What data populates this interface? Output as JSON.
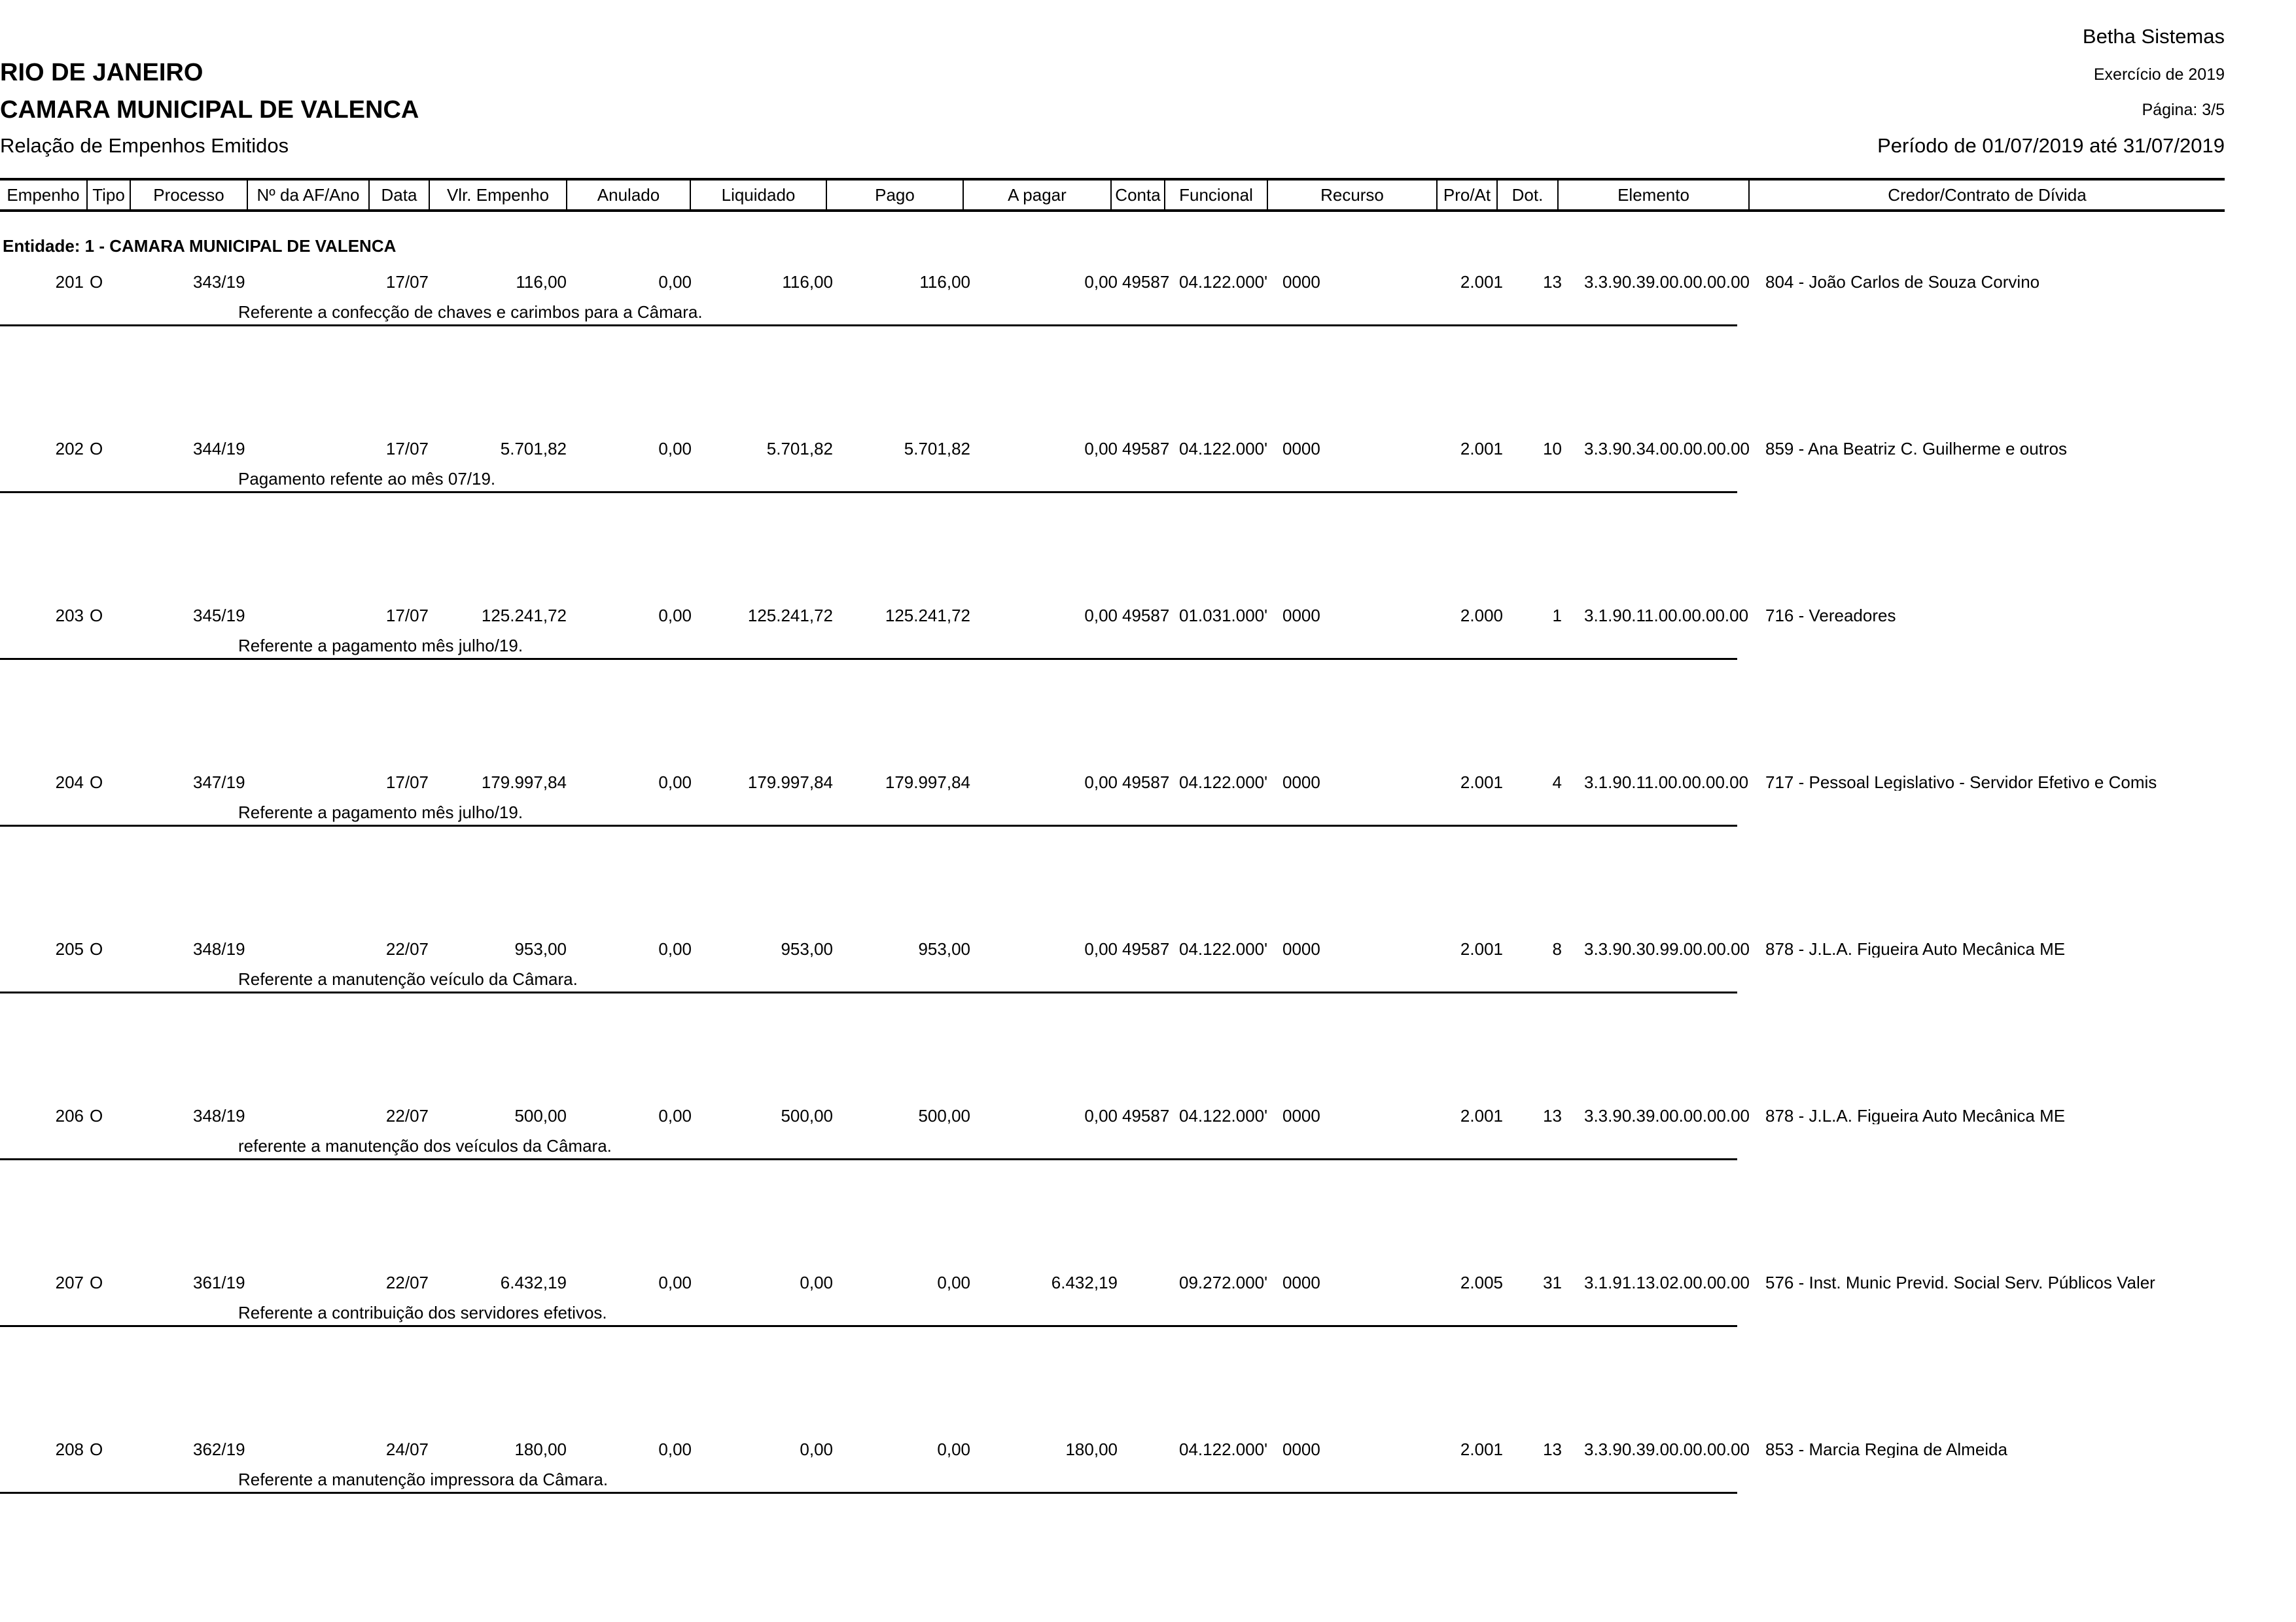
{
  "header": {
    "company": "Betha Sistemas",
    "state": "RIO DE JANEIRO",
    "entity": "CAMARA MUNICIPAL DE VALENCA",
    "report_title": "Relação de Empenhos Emitidos",
    "exercise": "Exercício de 2019",
    "page": "Página: 3/5",
    "period": "Período de 01/07/2019 até 31/07/2019"
  },
  "columns": [
    "Empenho",
    "Tipo",
    "Processo",
    "Nº da AF/Ano",
    "Data",
    "Vlr. Empenho",
    "Anulado",
    "Liquidado",
    "Pago",
    "A pagar",
    "Conta",
    "Funcional",
    "Recurso",
    "Pro/At",
    "Dot.",
    "Elemento",
    "Credor/Contrato de Dívida"
  ],
  "entity_group": "Entidade: 1 - CAMARA MUNICIPAL DE VALENCA",
  "rows": [
    {
      "empenho": "201",
      "tipo": "O",
      "processo": "343/19",
      "af": "",
      "data": "17/07",
      "vlr": "116,00",
      "anulado": "0,00",
      "liquidado": "116,00",
      "pago": "116,00",
      "apagar": "0,00",
      "conta": "49587",
      "funcional": "04.122.000'",
      "recurso": "0000",
      "proat": "2.001",
      "dot": "13",
      "elemento": "3.3.90.39.00.00.00.00",
      "credor": "804 - João Carlos de Souza Corvino",
      "descricao": "Referente a confecção de chaves e carimbos para a Câmara."
    },
    {
      "empenho": "202",
      "tipo": "O",
      "processo": "344/19",
      "af": "",
      "data": "17/07",
      "vlr": "5.701,82",
      "anulado": "0,00",
      "liquidado": "5.701,82",
      "pago": "5.701,82",
      "apagar": "0,00",
      "conta": "49587",
      "funcional": "04.122.000'",
      "recurso": "0000",
      "proat": "2.001",
      "dot": "10",
      "elemento": "3.3.90.34.00.00.00.00",
      "credor": "859 - Ana Beatriz C. Guilherme e outros",
      "descricao": "Pagamento refente ao mês 07/19."
    },
    {
      "empenho": "203",
      "tipo": "O",
      "processo": "345/19",
      "af": "",
      "data": "17/07",
      "vlr": "125.241,72",
      "anulado": "0,00",
      "liquidado": "125.241,72",
      "pago": "125.241,72",
      "apagar": "0,00",
      "conta": "49587",
      "funcional": "01.031.000'",
      "recurso": "0000",
      "proat": "2.000",
      "dot": "1",
      "elemento": "3.1.90.11.00.00.00.00",
      "credor": "716 - Vereadores",
      "descricao": "Referente a pagamento mês julho/19."
    },
    {
      "empenho": "204",
      "tipo": "O",
      "processo": "347/19",
      "af": "",
      "data": "17/07",
      "vlr": "179.997,84",
      "anulado": "0,00",
      "liquidado": "179.997,84",
      "pago": "179.997,84",
      "apagar": "0,00",
      "conta": "49587",
      "funcional": "04.122.000'",
      "recurso": "0000",
      "proat": "2.001",
      "dot": "4",
      "elemento": "3.1.90.11.00.00.00.00",
      "credor": "717 - Pessoal Legislativo - Servidor Efetivo e Comis",
      "descricao": "Referente a pagamento mês julho/19."
    },
    {
      "empenho": "205",
      "tipo": "O",
      "processo": "348/19",
      "af": "",
      "data": "22/07",
      "vlr": "953,00",
      "anulado": "0,00",
      "liquidado": "953,00",
      "pago": "953,00",
      "apagar": "0,00",
      "conta": "49587",
      "funcional": "04.122.000'",
      "recurso": "0000",
      "proat": "2.001",
      "dot": "8",
      "elemento": "3.3.90.30.99.00.00.00",
      "credor": "878 - J.L.A. Figueira Auto Mecânica ME",
      "descricao": "Referente a manutenção veículo da Câmara."
    },
    {
      "empenho": "206",
      "tipo": "O",
      "processo": "348/19",
      "af": "",
      "data": "22/07",
      "vlr": "500,00",
      "anulado": "0,00",
      "liquidado": "500,00",
      "pago": "500,00",
      "apagar": "0,00",
      "conta": "49587",
      "funcional": "04.122.000'",
      "recurso": "0000",
      "proat": "2.001",
      "dot": "13",
      "elemento": "3.3.90.39.00.00.00.00",
      "credor": "878 - J.L.A. Figueira Auto Mecânica ME",
      "descricao": "referente a manutenção dos veículos da Câmara."
    },
    {
      "empenho": "207",
      "tipo": "O",
      "processo": "361/19",
      "af": "",
      "data": "22/07",
      "vlr": "6.432,19",
      "anulado": "0,00",
      "liquidado": "0,00",
      "pago": "0,00",
      "apagar": "6.432,19",
      "conta": "",
      "funcional": "09.272.000'",
      "recurso": "0000",
      "proat": "2.005",
      "dot": "31",
      "elemento": "3.1.91.13.02.00.00.00",
      "credor": "576 - Inst. Munic Previd. Social Serv. Públicos Valer",
      "descricao": "Referente a contribuição dos servidores efetivos."
    },
    {
      "empenho": "208",
      "tipo": "O",
      "processo": "362/19",
      "af": "",
      "data": "24/07",
      "vlr": "180,00",
      "anulado": "0,00",
      "liquidado": "0,00",
      "pago": "0,00",
      "apagar": "180,00",
      "conta": "",
      "funcional": "04.122.000'",
      "recurso": "0000",
      "proat": "2.001",
      "dot": "13",
      "elemento": "3.3.90.39.00.00.00.00",
      "credor": "853 - Marcia Regina de Almeida",
      "descricao": "Referente a manutenção impressora da Câmara."
    }
  ]
}
